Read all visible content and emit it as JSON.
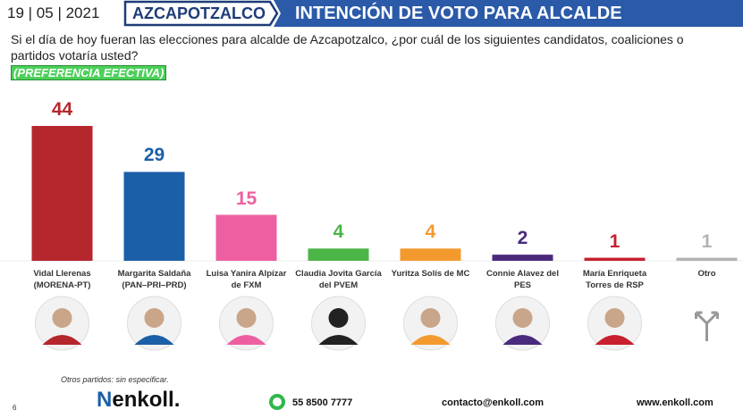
{
  "header": {
    "date": {
      "day": "19",
      "month": "05",
      "year": "2021"
    },
    "place": "AZCAPOTZALCO",
    "banner": "INTENCIÓN DE VOTO PARA ALCALDE"
  },
  "chart_data": {
    "type": "bar",
    "title": "Si el día de hoy fueran las elecciones para alcalde de Azcapotzalco, ¿por cuál de los siguientes candidatos, coaliciones o partidos votaría usted?",
    "subtitle": "(PREFERENCIA EFECTIVA)",
    "categories": [
      "Vidal Llerenas (MORENA-PT)",
      "Margarita Saldaña (PAN–PRI–PRD)",
      "Luisa Yanira Alpízar de FXM",
      "Claudia Jovita García del PVEM",
      "Yuritza Solís de MC",
      "Connie Alavez del PES",
      "María Enriqueta Torres de RSP",
      "Otro"
    ],
    "values": [
      44,
      29,
      15,
      4,
      4,
      2,
      1,
      1
    ],
    "colors": [
      "#b5262d",
      "#1b5fa8",
      "#ee5fa2",
      "#4cb548",
      "#f39a2e",
      "#4a2a7d",
      "#c8202f",
      "#b3b3b3"
    ],
    "annotation": "Otros partidos: sin especificar."
  },
  "footer": {
    "page": "6",
    "brand": "enkoll.",
    "phone": "55 8500 7777",
    "email": "contacto@enkoll.com",
    "web": "www.enkoll.com"
  }
}
